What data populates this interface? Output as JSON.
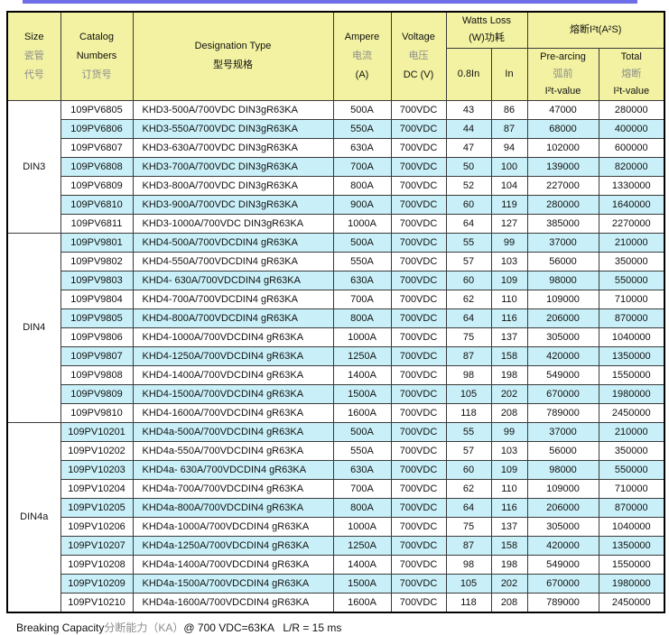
{
  "colors": {
    "accent_bar": "#6e6ee8",
    "header_bg": "#f2f2a2",
    "stripe_bg": "#c9f0f8",
    "muted_text": "#8c8c8c"
  },
  "header": {
    "size": {
      "en": "Size",
      "zh1": "瓷管",
      "zh2": "代号"
    },
    "catalog": {
      "en1": "Catalog",
      "en2": "Numbers",
      "zh": "订货号"
    },
    "designation": {
      "en": "Designation Type",
      "zh": "型号规格"
    },
    "ampere": {
      "en": "Ampere",
      "zh": "电流",
      "unit": "(A)"
    },
    "voltage": {
      "en": "Voltage",
      "zh": "电压",
      "unit": "DC (V)"
    },
    "watts_loss": {
      "line1": "Watts Loss",
      "line2": "(W)功耗",
      "sub1": "0.8In",
      "sub2": "In"
    },
    "i2t": {
      "group": "熔断I²t(A²S)",
      "prearcing": {
        "en": "Pre-arcing",
        "zh": "弧前",
        "value": "I²t-value"
      },
      "total": {
        "en": "Total",
        "zh": "熔断",
        "value": "I²t-value"
      }
    }
  },
  "table": {
    "column_keys": [
      "catalog-number",
      "designation-type",
      "ampere",
      "voltage",
      "watts-0.8in",
      "watts-in",
      "prearcing-i2t",
      "total-i2t"
    ],
    "sections": [
      {
        "size": "DIN3",
        "rows": [
          [
            "109PV6805",
            "KHD3-500A/700VDC DIN3gR63KA",
            "500A",
            "700VDC",
            "43",
            "86",
            "47000",
            "280000"
          ],
          [
            "109PV6806",
            "KHD3-550A/700VDC DIN3gR63KA",
            "550A",
            "700VDC",
            "44",
            "87",
            "68000",
            "400000"
          ],
          [
            "109PV6807",
            "KHD3-630A/700VDC DIN3gR63KA",
            "630A",
            "700VDC",
            "47",
            "94",
            "102000",
            "600000"
          ],
          [
            "109PV6808",
            "KHD3-700A/700VDC DIN3gR63KA",
            "700A",
            "700VDC",
            "50",
            "100",
            "139000",
            "820000"
          ],
          [
            "109PV6809",
            "KHD3-800A/700VDC DIN3gR63KA",
            "800A",
            "700VDC",
            "52",
            "104",
            "227000",
            "1330000"
          ],
          [
            "109PV6810",
            "KHD3-900A/700VDC DIN3gR63KA",
            "900A",
            "700VDC",
            "60",
            "119",
            "280000",
            "1640000"
          ],
          [
            "109PV6811",
            "KHD3-1000A/700VDC DIN3gR63KA",
            "1000A",
            "700VDC",
            "64",
            "127",
            "385000",
            "2270000"
          ]
        ]
      },
      {
        "size": "DIN4",
        "rows": [
          [
            "109PV9801",
            "KHD4-500A/700VDCDIN4 gR63KA",
            "500A",
            "700VDC",
            "55",
            "99",
            "37000",
            "210000"
          ],
          [
            "109PV9802",
            "KHD4-550A/700VDCDIN4 gR63KA",
            "550A",
            "700VDC",
            "57",
            "103",
            "56000",
            "350000"
          ],
          [
            "109PV9803",
            "KHD4- 630A/700VDCDIN4 gR63KA",
            "630A",
            "700VDC",
            "60",
            "109",
            "98000",
            "550000"
          ],
          [
            "109PV9804",
            "KHD4-700A/700VDCDIN4 gR63KA",
            "700A",
            "700VDC",
            "62",
            "110",
            "109000",
            "710000"
          ],
          [
            "109PV9805",
            "KHD4-800A/700VDCDIN4 gR63KA",
            "800A",
            "700VDC",
            "64",
            "116",
            "206000",
            "870000"
          ],
          [
            "109PV9806",
            "KHD4-1000A/700VDCDIN4 gR63KA",
            "1000A",
            "700VDC",
            "75",
            "137",
            "305000",
            "1040000"
          ],
          [
            "109PV9807",
            "KHD4-1250A/700VDCDIN4 gR63KA",
            "1250A",
            "700VDC",
            "87",
            "158",
            "420000",
            "1350000"
          ],
          [
            "109PV9808",
            "KHD4-1400A/700VDCDIN4 gR63KA",
            "1400A",
            "700VDC",
            "98",
            "198",
            "549000",
            "1550000"
          ],
          [
            "109PV9809",
            "KHD4-1500A/700VDCDIN4 gR63KA",
            "1500A",
            "700VDC",
            "105",
            "202",
            "670000",
            "1980000"
          ],
          [
            "109PV9810",
            "KHD4-1600A/700VDCDIN4 gR63KA",
            "1600A",
            "700VDC",
            "118",
            "208",
            "789000",
            "2450000"
          ]
        ]
      },
      {
        "size": "DIN4a",
        "rows": [
          [
            "109PV10201",
            "KHD4a-500A/700VDCDIN4 gR63KA",
            "500A",
            "700VDC",
            "55",
            "99",
            "37000",
            "210000"
          ],
          [
            "109PV10202",
            "KHD4a-550A/700VDCDIN4 gR63KA",
            "550A",
            "700VDC",
            "57",
            "103",
            "56000",
            "350000"
          ],
          [
            "109PV10203",
            "KHD4a- 630A/700VDCDIN4 gR63KA",
            "630A",
            "700VDC",
            "60",
            "109",
            "98000",
            "550000"
          ],
          [
            "109PV10204",
            "KHD4a-700A/700VDCDIN4 gR63KA",
            "700A",
            "700VDC",
            "62",
            "110",
            "109000",
            "710000"
          ],
          [
            "109PV10205",
            "KHD4a-800A/700VDCDIN4 gR63KA",
            "800A",
            "700VDC",
            "64",
            "116",
            "206000",
            "870000"
          ],
          [
            "109PV10206",
            "KHD4a-1000A/700VDCDIN4 gR63KA",
            "1000A",
            "700VDC",
            "75",
            "137",
            "305000",
            "1040000"
          ],
          [
            "109PV10207",
            "KHD4a-1250A/700VDCDIN4 gR63KA",
            "1250A",
            "700VDC",
            "87",
            "158",
            "420000",
            "1350000"
          ],
          [
            "109PV10208",
            "KHD4a-1400A/700VDCDIN4 gR63KA",
            "1400A",
            "700VDC",
            "98",
            "198",
            "549000",
            "1550000"
          ],
          [
            "109PV10209",
            "KHD4a-1500A/700VDCDIN4 gR63KA",
            "1500A",
            "700VDC",
            "105",
            "202",
            "670000",
            "1980000"
          ],
          [
            "109PV10210",
            "KHD4a-1600A/700VDCDIN4 gR63KA",
            "1600A",
            "700VDC",
            "118",
            "208",
            "789000",
            "2450000"
          ]
        ]
      }
    ]
  },
  "footer": {
    "en": "Breaking Capacity",
    "zh": "分断能力（KA）",
    "rest": "@ 700 VDC=63KA   L/R = 15 ms"
  }
}
